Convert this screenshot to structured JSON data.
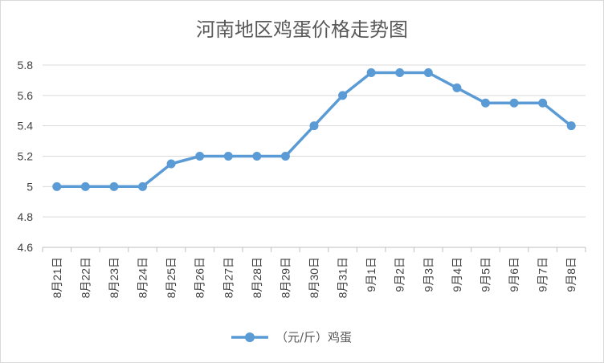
{
  "chart_data": {
    "type": "line",
    "title": "河南地区鸡蛋价格走势图",
    "xlabel": "",
    "ylabel": "",
    "categories": [
      "8月21日",
      "8月22日",
      "8月23日",
      "8月24日",
      "8月25日",
      "8月26日",
      "8月27日",
      "8月28日",
      "8月29日",
      "8月30日",
      "8月31日",
      "9月1日",
      "9月2日",
      "9月3日",
      "9月4日",
      "9月5日",
      "9月6日",
      "9月7日",
      "9月8日"
    ],
    "series": [
      {
        "name": "（元/斤）鸡蛋",
        "color": "#5b9bd5",
        "values": [
          5,
          5,
          5,
          5,
          5.15,
          5.2,
          5.2,
          5.2,
          5.2,
          5.4,
          5.6,
          5.75,
          5.75,
          5.75,
          5.65,
          5.55,
          5.55,
          5.55,
          5.4
        ]
      }
    ],
    "ylim": [
      4.6,
      5.8
    ],
    "yticks": [
      4.6,
      4.8,
      5,
      5.2,
      5.4,
      5.6,
      5.8
    ],
    "ytick_labels": [
      "4.6",
      "4.8",
      "5",
      "5.2",
      "5.4",
      "5.6",
      "5.8"
    ],
    "grid": true,
    "legend": "bottom"
  }
}
